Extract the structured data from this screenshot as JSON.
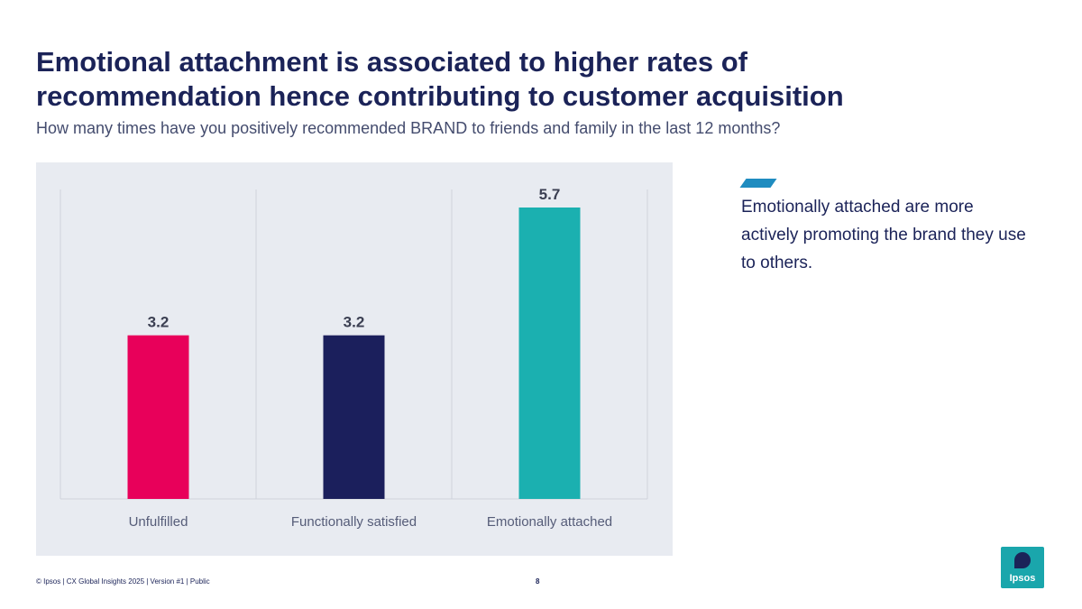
{
  "header": {
    "title": "Emotional attachment is associated to higher rates of recommendation hence contributing to customer acquisition",
    "subtitle": "How many times have you positively recommended BRAND to friends and family in the last 12 months?"
  },
  "chart_data": {
    "type": "bar",
    "title": "",
    "xlabel": "",
    "ylabel": "",
    "categories": [
      "Unfulfilled",
      "Functionally satisfied",
      "Emotionally attached"
    ],
    "values": [
      3.2,
      3.2,
      5.7
    ],
    "labels": [
      "3.2",
      "3.2",
      "5.7"
    ],
    "colors": [
      "#e8005a",
      "#1b1f5c",
      "#1bb0b0"
    ],
    "ylim": [
      0,
      5.7
    ],
    "grid": false,
    "legend": "none"
  },
  "side_note": {
    "text": "Emotionally attached are more actively promoting the brand they use to others.",
    "accent_color": "#1f8cc0"
  },
  "footer": {
    "text": "© Ipsos | CX Global Insights 2025 | Version #1 | Public",
    "page": "8"
  },
  "logo": {
    "text": "Ipsos",
    "color": "#1aa6ac"
  }
}
